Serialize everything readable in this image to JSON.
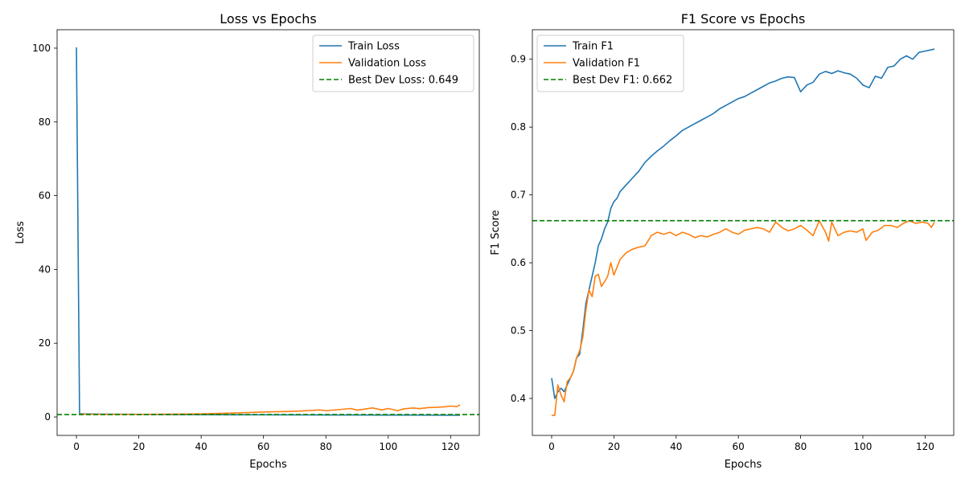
{
  "colors": {
    "train": "#1f77b4",
    "validation": "#ff7f0e",
    "best": "#008000"
  },
  "chart_data": [
    {
      "type": "line",
      "title": "Loss vs Epochs",
      "xlabel": "Epochs",
      "ylabel": "Loss",
      "xlim": [
        -6.2,
        129.2
      ],
      "ylim": [
        -5,
        105
      ],
      "xticks": [
        0,
        20,
        40,
        60,
        80,
        100,
        120
      ],
      "yticks": [
        0,
        20,
        40,
        60,
        80,
        100
      ],
      "grid": false,
      "legend_position": "top-right",
      "hline": {
        "y": 0.649,
        "label": "Best Dev Loss: 0.649"
      },
      "series": [
        {
          "name": "Train Loss",
          "x": [
            0,
            1,
            2,
            5,
            10,
            20,
            30,
            40,
            50,
            60,
            70,
            80,
            90,
            100,
            110,
            120,
            123
          ],
          "y": [
            100.2,
            0.9,
            0.85,
            0.8,
            0.75,
            0.7,
            0.65,
            0.62,
            0.6,
            0.58,
            0.56,
            0.55,
            0.53,
            0.52,
            0.5,
            0.49,
            0.48
          ]
        },
        {
          "name": "Validation Loss",
          "x": [
            1,
            5,
            10,
            20,
            30,
            40,
            45,
            50,
            55,
            60,
            65,
            70,
            75,
            78,
            80,
            85,
            88,
            90,
            95,
            98,
            100,
            103,
            105,
            108,
            110,
            113,
            115,
            118,
            120,
            122,
            123
          ],
          "y": [
            0.75,
            0.72,
            0.7,
            0.72,
            0.76,
            0.85,
            0.95,
            1.05,
            1.2,
            1.35,
            1.45,
            1.55,
            1.75,
            1.9,
            1.7,
            2.05,
            2.3,
            1.85,
            2.45,
            1.9,
            2.3,
            1.7,
            2.2,
            2.45,
            2.25,
            2.55,
            2.6,
            2.75,
            2.95,
            2.8,
            3.3
          ]
        }
      ]
    },
    {
      "type": "line",
      "title": "F1 Score vs Epochs",
      "xlabel": "Epochs",
      "ylabel": "F1 Score",
      "xlim": [
        -6.2,
        129.2
      ],
      "ylim": [
        0.3455,
        0.9435
      ],
      "xticks": [
        0,
        20,
        40,
        60,
        80,
        100,
        120
      ],
      "yticks": [
        0.4,
        0.5,
        0.6,
        0.7,
        0.8,
        0.9
      ],
      "grid": false,
      "legend_position": "top-left",
      "hline": {
        "y": 0.662,
        "label": "Best Dev F1: 0.662"
      },
      "series": [
        {
          "name": "Train F1",
          "x": [
            0,
            1,
            2,
            3,
            4,
            5,
            6,
            7,
            8,
            9,
            10,
            11,
            12,
            13,
            14,
            15,
            16,
            17,
            18,
            19,
            20,
            21,
            22,
            24,
            26,
            28,
            30,
            32,
            34,
            36,
            38,
            40,
            42,
            44,
            46,
            48,
            50,
            52,
            54,
            56,
            58,
            60,
            62,
            64,
            66,
            68,
            70,
            72,
            74,
            76,
            78,
            80,
            82,
            84,
            86,
            88,
            90,
            92,
            94,
            96,
            98,
            100,
            102,
            104,
            106,
            108,
            110,
            112,
            114,
            116,
            118,
            120,
            122,
            123
          ],
          "y": [
            0.43,
            0.4,
            0.41,
            0.415,
            0.41,
            0.42,
            0.43,
            0.44,
            0.46,
            0.465,
            0.5,
            0.54,
            0.56,
            0.58,
            0.6,
            0.625,
            0.635,
            0.65,
            0.66,
            0.68,
            0.69,
            0.695,
            0.705,
            0.715,
            0.725,
            0.735,
            0.748,
            0.757,
            0.765,
            0.772,
            0.78,
            0.787,
            0.795,
            0.8,
            0.805,
            0.81,
            0.815,
            0.82,
            0.827,
            0.832,
            0.837,
            0.842,
            0.845,
            0.85,
            0.855,
            0.86,
            0.865,
            0.868,
            0.872,
            0.874,
            0.873,
            0.852,
            0.862,
            0.866,
            0.878,
            0.882,
            0.879,
            0.883,
            0.88,
            0.878,
            0.872,
            0.862,
            0.858,
            0.875,
            0.872,
            0.888,
            0.89,
            0.9,
            0.905,
            0.9,
            0.91,
            0.912,
            0.914,
            0.915
          ]
        },
        {
          "name": "Validation F1",
          "x": [
            0,
            1,
            2,
            3,
            4,
            5,
            6,
            7,
            8,
            9,
            10,
            11,
            12,
            13,
            14,
            15,
            16,
            17,
            18,
            19,
            20,
            22,
            24,
            26,
            28,
            30,
            32,
            34,
            36,
            38,
            40,
            42,
            44,
            46,
            48,
            50,
            52,
            54,
            56,
            58,
            60,
            62,
            64,
            66,
            68,
            70,
            72,
            74,
            76,
            78,
            80,
            82,
            84,
            86,
            88,
            89,
            90,
            92,
            94,
            96,
            98,
            100,
            101,
            103,
            105,
            107,
            109,
            111,
            113,
            115,
            117,
            119,
            121,
            122,
            123
          ],
          "y": [
            0.375,
            0.375,
            0.42,
            0.405,
            0.395,
            0.425,
            0.43,
            0.44,
            0.46,
            0.47,
            0.49,
            0.53,
            0.56,
            0.55,
            0.58,
            0.583,
            0.565,
            0.572,
            0.58,
            0.6,
            0.582,
            0.605,
            0.615,
            0.62,
            0.623,
            0.625,
            0.64,
            0.645,
            0.642,
            0.645,
            0.64,
            0.645,
            0.642,
            0.637,
            0.64,
            0.638,
            0.642,
            0.645,
            0.65,
            0.645,
            0.642,
            0.648,
            0.65,
            0.652,
            0.65,
            0.645,
            0.66,
            0.652,
            0.647,
            0.65,
            0.655,
            0.648,
            0.64,
            0.662,
            0.645,
            0.632,
            0.66,
            0.64,
            0.645,
            0.647,
            0.645,
            0.65,
            0.633,
            0.645,
            0.648,
            0.655,
            0.655,
            0.652,
            0.658,
            0.662,
            0.658,
            0.66,
            0.658,
            0.652,
            0.66
          ]
        }
      ]
    }
  ]
}
